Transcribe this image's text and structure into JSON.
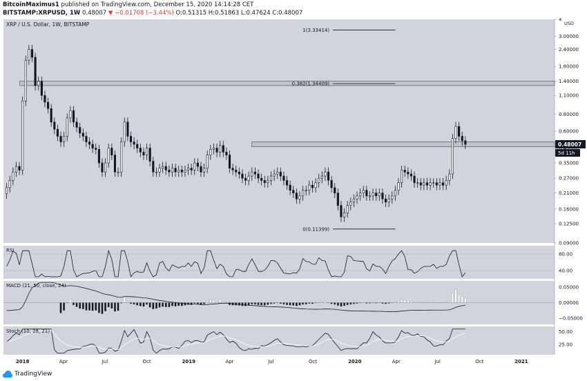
{
  "header": {
    "line1_author": "BitcoinMaximus1",
    "line1_rest": "published on TradingView.com, December 15, 2020 14:14:28 CET",
    "symbol": "BITSTAMP:XRPUSD, 1W",
    "last": "0.48007",
    "arrow": "▼",
    "change": "−0.01708 (−3.44%)",
    "ohlc": "O:0.51315 H:0.51863 L:0.47624 C:0.48007"
  },
  "footer": {
    "brand": "TradingView"
  },
  "chart_data": {
    "type": "candlestick",
    "title": "XRP / U.S. Dollar, 1W, BITSTAMP",
    "price_axis": {
      "unit_label": "USD",
      "scale": "log",
      "ticks": [
        "4",
        "3.00000",
        "2.40000",
        "1.80000",
        "1.40000",
        "1.10000",
        "0.80000",
        "0.60000",
        "0.45000",
        "0.35000",
        "0.27000",
        "0.21000",
        "0.16000",
        "0.12500",
        "0.09000"
      ],
      "range": [
        0.09,
        4.0
      ]
    },
    "price_label": "0.48007",
    "countdown_label": "5d 11h",
    "time_axis": {
      "ticks": [
        "2018",
        "Apr",
        "Jul",
        "Oct",
        "2019",
        "Apr",
        "Jul",
        "Oct",
        "2020",
        "Apr",
        "Jul",
        "Oct",
        "2021"
      ],
      "range": [
        "2017-11-20",
        "2021-03-15"
      ]
    },
    "fib_levels": [
      {
        "label": "1(3.33414)",
        "value": 3.33414
      },
      {
        "label": "0.382(1.34409)",
        "value": 1.34409
      },
      {
        "label": "0(0.11399)",
        "value": 0.11399
      }
    ],
    "resistance_zones": [
      {
        "from": 1.3,
        "to": 1.4
      },
      {
        "from": 0.46,
        "to": 0.5
      }
    ],
    "weekly_closes": [
      0.23,
      0.26,
      0.3,
      0.33,
      0.31,
      1.0,
      2.0,
      2.4,
      2.1,
      1.3,
      1.4,
      1.1,
      0.98,
      0.88,
      0.7,
      0.62,
      0.55,
      0.5,
      0.55,
      0.75,
      0.85,
      0.7,
      0.64,
      0.58,
      0.55,
      0.5,
      0.48,
      0.45,
      0.44,
      0.35,
      0.3,
      0.35,
      0.45,
      0.4,
      0.3,
      0.3,
      0.5,
      0.7,
      0.55,
      0.5,
      0.48,
      0.45,
      0.42,
      0.4,
      0.45,
      0.36,
      0.3,
      0.3,
      0.32,
      0.33,
      0.31,
      0.3,
      0.32,
      0.3,
      0.31,
      0.3,
      0.31,
      0.32,
      0.31,
      0.35,
      0.33,
      0.3,
      0.32,
      0.4,
      0.44,
      0.45,
      0.42,
      0.47,
      0.42,
      0.4,
      0.32,
      0.31,
      0.3,
      0.29,
      0.27,
      0.26,
      0.28,
      0.3,
      0.29,
      0.27,
      0.26,
      0.25,
      0.26,
      0.28,
      0.29,
      0.3,
      0.28,
      0.26,
      0.24,
      0.22,
      0.21,
      0.19,
      0.2,
      0.22,
      0.22,
      0.24,
      0.23,
      0.25,
      0.27,
      0.28,
      0.3,
      0.26,
      0.23,
      0.21,
      0.17,
      0.14,
      0.15,
      0.17,
      0.18,
      0.19,
      0.2,
      0.21,
      0.22,
      0.2,
      0.2,
      0.21,
      0.2,
      0.21,
      0.19,
      0.18,
      0.19,
      0.2,
      0.22,
      0.25,
      0.31,
      0.3,
      0.29,
      0.28,
      0.25,
      0.25,
      0.24,
      0.25,
      0.24,
      0.25,
      0.25,
      0.24,
      0.25,
      0.24,
      0.26,
      0.29,
      0.53,
      0.65,
      0.55,
      0.51,
      0.48
    ],
    "indicators": {
      "rsi": {
        "label": "RSI",
        "ticks": [
          "80.00",
          "40.00"
        ]
      },
      "macd": {
        "label": "MACD (21, 50, close, 24)",
        "ticks": [
          "0.05000",
          "0.00000",
          "−0.05000"
        ]
      },
      "stoch": {
        "label": "Stoch (10, 28, 21)",
        "ticks": [
          "50.00",
          "25.00"
        ]
      }
    },
    "grid": false
  }
}
